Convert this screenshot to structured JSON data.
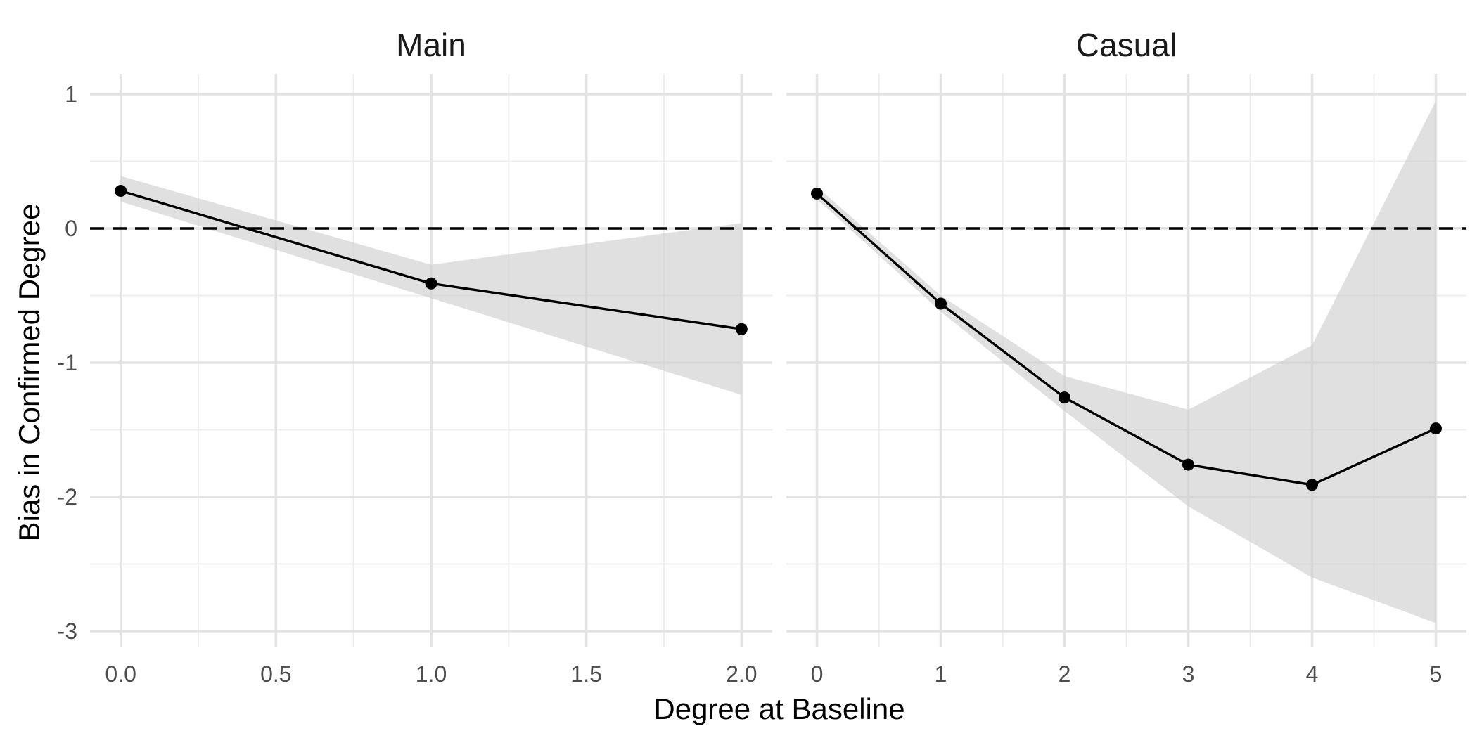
{
  "chart_data": {
    "type": "line",
    "xlabel": "Degree at Baseline",
    "ylabel": "Bias in Confirmed Degree",
    "ylim": [
      -3,
      1
    ],
    "yticks": [
      1,
      0,
      -1,
      -2,
      -3
    ],
    "ytick_labels": [
      "1",
      "0",
      "-1",
      "-2",
      "-3"
    ],
    "reference_line": {
      "y": 0,
      "style": "dashed"
    },
    "grid": true,
    "facets": [
      {
        "title": "Main",
        "xlim": [
          0,
          2
        ],
        "xticks": [
          0,
          0.5,
          1,
          1.5,
          2
        ],
        "xtick_labels": [
          "0.0",
          "0.5",
          "1.0",
          "1.5",
          "2.0"
        ],
        "x": [
          0,
          1,
          2
        ],
        "y": [
          0.28,
          -0.41,
          -0.75
        ],
        "lower": [
          0.2,
          -0.52,
          -1.24
        ],
        "upper": [
          0.39,
          -0.27,
          0.04
        ]
      },
      {
        "title": "Casual",
        "xlim": [
          0,
          5
        ],
        "xticks": [
          0,
          1,
          2,
          3,
          4,
          5
        ],
        "xtick_labels": [
          "0",
          "1",
          "2",
          "3",
          "4",
          "5"
        ],
        "x": [
          0,
          1,
          2,
          3,
          4,
          5
        ],
        "y": [
          0.26,
          -0.56,
          -1.26,
          -1.76,
          -1.91,
          -1.49
        ],
        "lower": [
          0.22,
          -0.62,
          -1.36,
          -2.07,
          -2.6,
          -2.94
        ],
        "upper": [
          0.31,
          -0.5,
          -1.1,
          -1.35,
          -0.87,
          0.95
        ]
      }
    ]
  }
}
